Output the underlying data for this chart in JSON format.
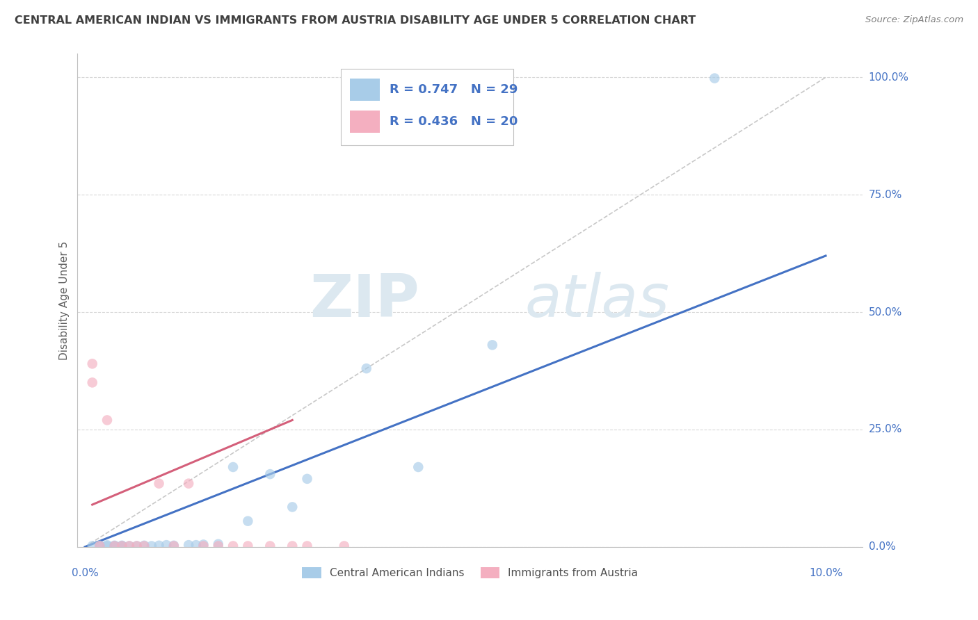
{
  "title": "CENTRAL AMERICAN INDIAN VS IMMIGRANTS FROM AUSTRIA DISABILITY AGE UNDER 5 CORRELATION CHART",
  "source": "Source: ZipAtlas.com",
  "ylabel": "Disability Age Under 5",
  "yaxis_ticks": [
    "0.0%",
    "25.0%",
    "50.0%",
    "75.0%",
    "100.0%"
  ],
  "blue_scatter_x": [
    0.001,
    0.002,
    0.002,
    0.003,
    0.003,
    0.004,
    0.004,
    0.005,
    0.005,
    0.006,
    0.007,
    0.008,
    0.009,
    0.01,
    0.011,
    0.012,
    0.014,
    0.015,
    0.016,
    0.018,
    0.02,
    0.022,
    0.025,
    0.028,
    0.03,
    0.038,
    0.045,
    0.055,
    0.085
  ],
  "blue_scatter_y": [
    0.002,
    0.002,
    0.003,
    0.002,
    0.004,
    0.002,
    0.003,
    0.002,
    0.003,
    0.002,
    0.002,
    0.003,
    0.002,
    0.003,
    0.004,
    0.003,
    0.004,
    0.004,
    0.005,
    0.006,
    0.17,
    0.055,
    0.155,
    0.085,
    0.145,
    0.38,
    0.17,
    0.43,
    0.998
  ],
  "pink_scatter_x": [
    0.001,
    0.001,
    0.002,
    0.003,
    0.004,
    0.005,
    0.006,
    0.007,
    0.008,
    0.01,
    0.012,
    0.014,
    0.016,
    0.018,
    0.02,
    0.022,
    0.025,
    0.028,
    0.03,
    0.035
  ],
  "pink_scatter_y": [
    0.39,
    0.35,
    0.002,
    0.27,
    0.002,
    0.002,
    0.002,
    0.002,
    0.002,
    0.135,
    0.002,
    0.135,
    0.002,
    0.002,
    0.002,
    0.002,
    0.002,
    0.002,
    0.002,
    0.002
  ],
  "blue_line_x": [
    0.0,
    0.1
  ],
  "blue_line_y": [
    0.0,
    0.62
  ],
  "pink_line_x": [
    0.001,
    0.028
  ],
  "pink_line_y": [
    0.09,
    0.27
  ],
  "diagonal_line_x": [
    0.0,
    0.1
  ],
  "diagonal_line_y": [
    0.0,
    1.0
  ],
  "scatter_size": 110,
  "scatter_alpha": 0.65,
  "blue_color": "#a8cce8",
  "pink_color": "#f4afc0",
  "blue_line_color": "#4472c4",
  "pink_line_color": "#d45f7a",
  "diagonal_color": "#c8c8c8",
  "background_color": "#ffffff",
  "grid_color": "#d8d8d8",
  "ylim": [
    0.0,
    1.05
  ],
  "xlim": [
    -0.001,
    0.105
  ],
  "watermark_zip": "ZIP",
  "watermark_atlas": "atlas",
  "title_color": "#404040",
  "axis_label_color": "#4472c4",
  "legend_r1": "R = 0.747   N = 29",
  "legend_r2": "R = 0.436   N = 20",
  "bottom_legend_1": "Central American Indians",
  "bottom_legend_2": "Immigrants from Austria"
}
